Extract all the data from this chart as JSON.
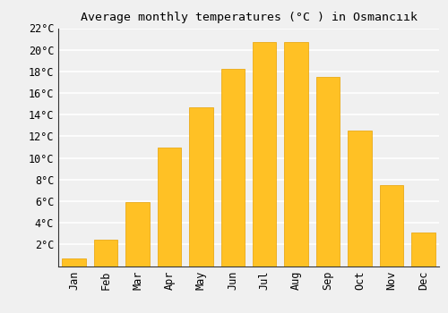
{
  "title": "Average monthly temperatures (°C ) in Osmancıık",
  "months": [
    "Jan",
    "Feb",
    "Mar",
    "Apr",
    "May",
    "Jun",
    "Jul",
    "Aug",
    "Sep",
    "Oct",
    "Nov",
    "Dec"
  ],
  "values": [
    0.7,
    2.4,
    5.9,
    11.0,
    14.7,
    18.2,
    20.7,
    20.7,
    17.5,
    12.5,
    7.5,
    3.1
  ],
  "bar_color": "#FFC125",
  "bar_edge_color": "#E8A000",
  "ylim": [
    0,
    22
  ],
  "yticks": [
    2,
    4,
    6,
    8,
    10,
    12,
    14,
    16,
    18,
    20,
    22
  ],
  "background_color": "#f0f0f0",
  "grid_color": "#ffffff",
  "title_fontsize": 9.5,
  "tick_fontsize": 8.5,
  "font_family": "monospace"
}
